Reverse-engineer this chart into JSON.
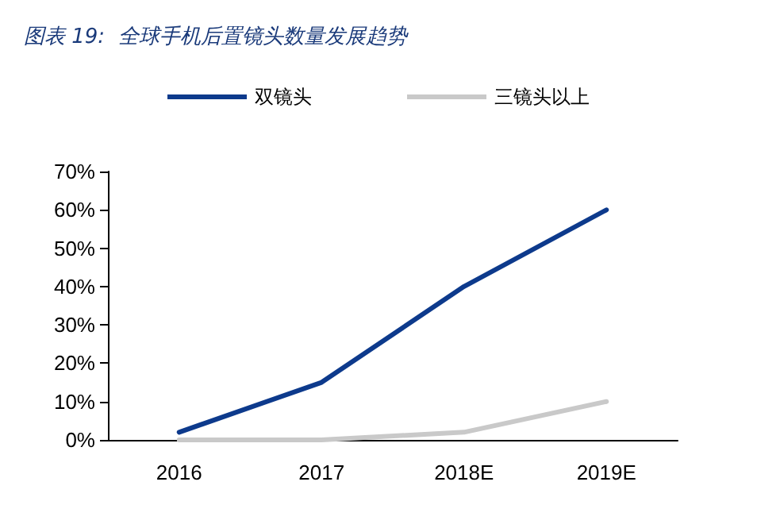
{
  "chart_data": {
    "type": "line",
    "title": "图表 19:  全球手机后置镜头数量发展趋势",
    "categories": [
      "2016",
      "2017",
      "2018E",
      "2019E"
    ],
    "series": [
      {
        "name": "双镜头",
        "color": "#0d3a8c",
        "values": [
          2,
          15,
          40,
          60
        ]
      },
      {
        "name": "三镜头以上",
        "color": "#c9c9c9",
        "values": [
          0,
          0,
          2,
          10
        ]
      }
    ],
    "ylim": [
      0,
      70
    ],
    "yticks": [
      {
        "value": 0,
        "label": "0%"
      },
      {
        "value": 10,
        "label": "10%"
      },
      {
        "value": 20,
        "label": "20%"
      },
      {
        "value": 30,
        "label": "30%"
      },
      {
        "value": 40,
        "label": "40%"
      },
      {
        "value": 50,
        "label": "50%"
      },
      {
        "value": 60,
        "label": "60%"
      },
      {
        "value": 70,
        "label": "70%"
      }
    ],
    "grid": false,
    "legend": "top",
    "marker": "none",
    "line_style": "solid"
  }
}
